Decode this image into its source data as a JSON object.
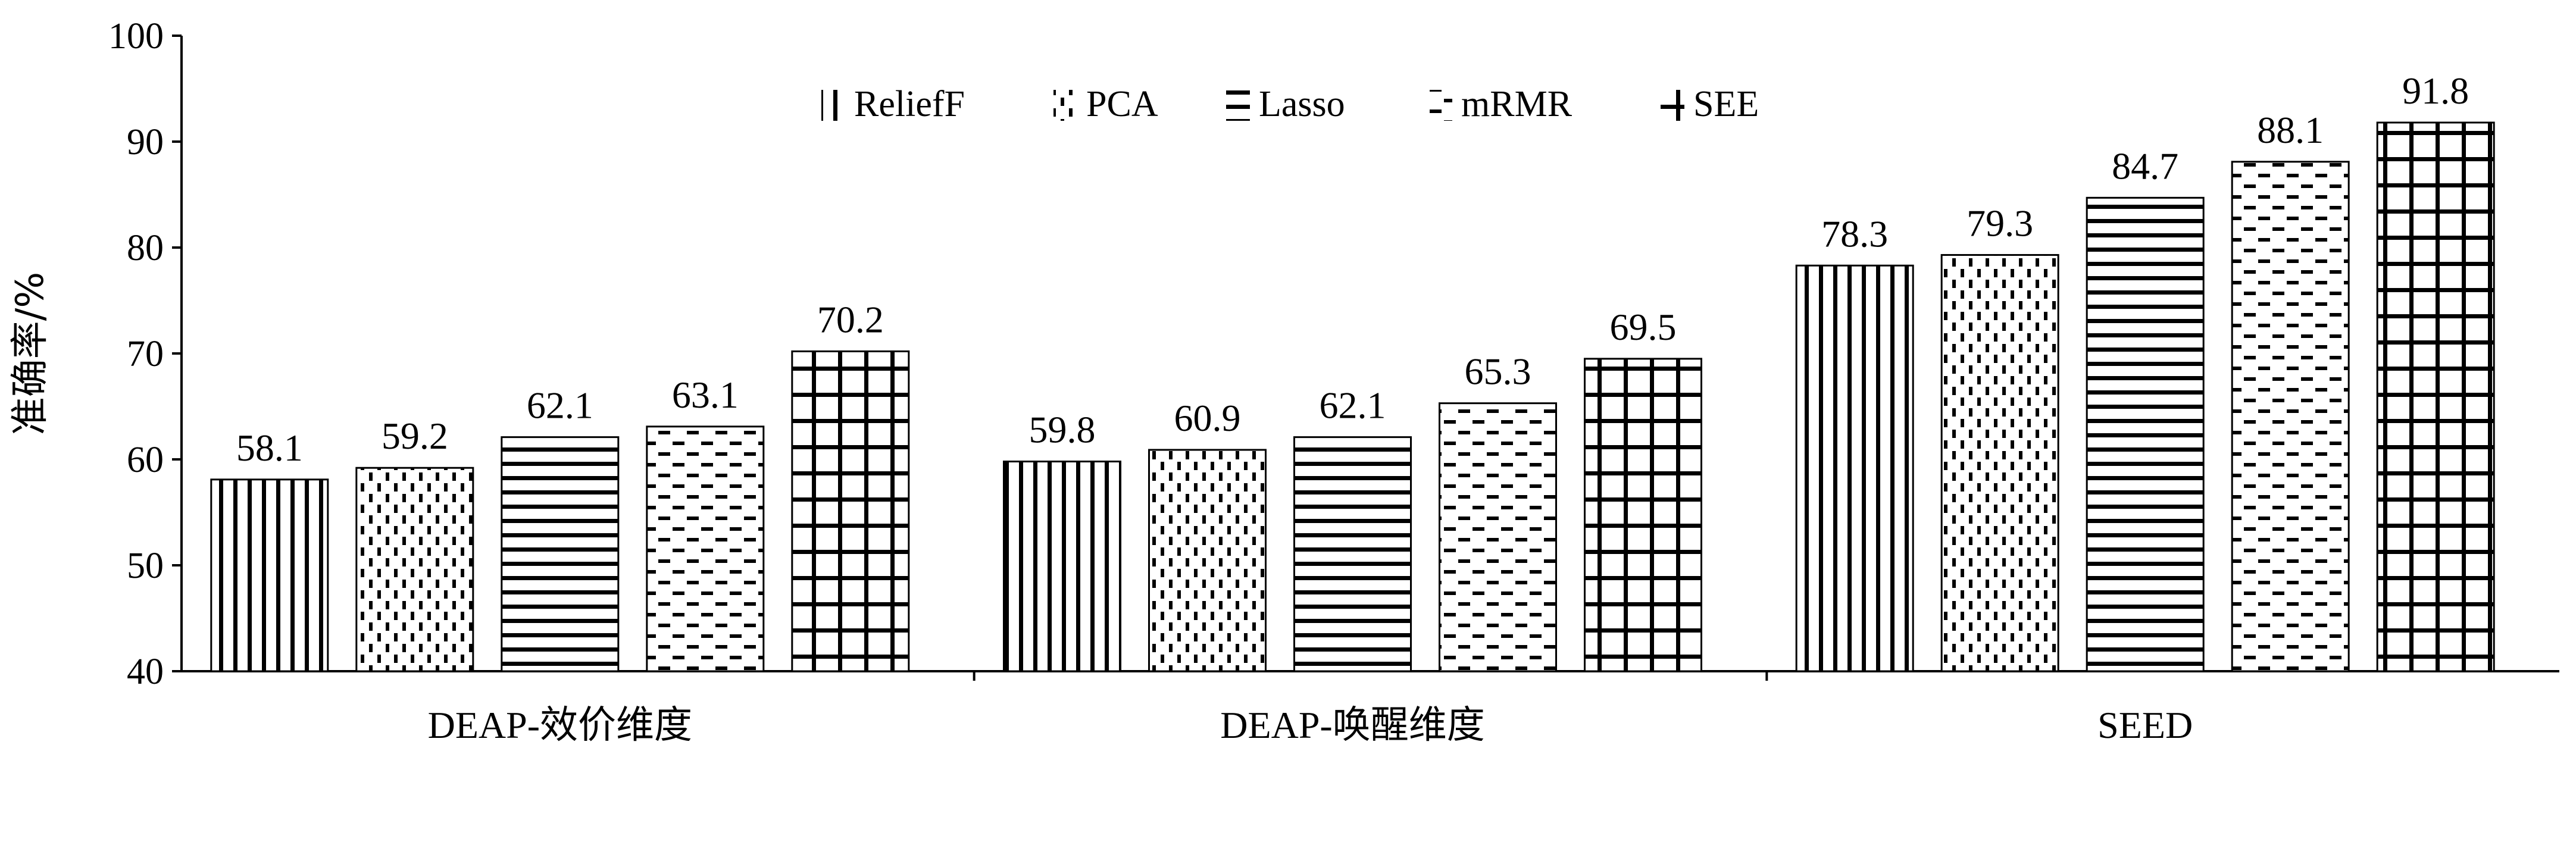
{
  "chart_data": {
    "type": "bar",
    "ylabel": "准确率/%",
    "ylim": [
      40,
      100
    ],
    "yticks": [
      "40",
      "50",
      "60",
      "70",
      "80",
      "90",
      "100"
    ],
    "categories": [
      "DEAP-效价维度",
      "DEAP-唤醒维度",
      "SEED"
    ],
    "series": [
      {
        "name": "ReliefF",
        "pattern": "vertical-lines",
        "values": [
          58.1,
          59.8,
          78.3
        ],
        "labels": [
          "58.1",
          "59.8",
          "78.3"
        ]
      },
      {
        "name": "PCA",
        "pattern": "vertical-dashes",
        "values": [
          59.2,
          60.9,
          79.3
        ],
        "labels": [
          "59.2",
          "60.9",
          "79.3"
        ]
      },
      {
        "name": "Lasso",
        "pattern": "horizontal-lines",
        "values": [
          62.1,
          62.1,
          84.7
        ],
        "labels": [
          "62.1",
          "62.1",
          "84.7"
        ]
      },
      {
        "name": "mRMR",
        "pattern": "horizontal-dashes",
        "values": [
          63.1,
          65.3,
          88.1
        ],
        "labels": [
          "63.1",
          "65.3",
          "88.1"
        ]
      },
      {
        "name": "SEE",
        "pattern": "grid",
        "values": [
          70.2,
          69.5,
          91.8
        ],
        "labels": [
          "70.2",
          "69.5",
          "91.8"
        ]
      }
    ],
    "legend_position": "top",
    "grid": false,
    "colors": {
      "ink": "#000000",
      "background": "#ffffff"
    }
  }
}
